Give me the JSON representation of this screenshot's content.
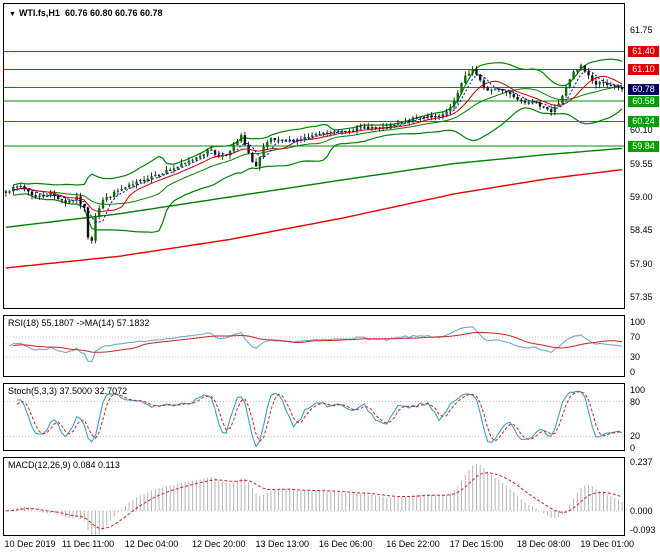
{
  "header": {
    "dropdown_icon": "▼",
    "symbol_period": "WTI.fs,H1",
    "ohlc_text": "60.76 60.80 60.76 60.78"
  },
  "colors": {
    "panel_border": "#000000",
    "grid_dotted": "#c8c8c8",
    "up_candle": "#0a6b0a",
    "down_candle": "#111111",
    "wick": "#000000",
    "bb_band": "#008000",
    "fast_ma_red": "#d00000",
    "fast_ma_blue": "#0000cc",
    "slow_ma_green": "#008000",
    "slow_ma_red": "#e80000",
    "resistance": "#ff0000",
    "support": "#009000",
    "rsi_line": "#6fa8cf",
    "rsi_signal": "#cc2222",
    "stoch_line": "#3aa0c0",
    "stoch_signal": "#cc2222",
    "macd_hist": "#b4b4b4",
    "macd_signal": "#cc2222",
    "resistance_badge_bg": "#e00000",
    "support_badge_bg": "#00a000",
    "current_badge_bg": "#000066",
    "badge_text": "#ffffff",
    "axis_text": "#000000"
  },
  "x_axis": {
    "labels": [
      {
        "text": "10 Dec 2019",
        "bar": 5
      },
      {
        "text": "11 Dec 11:00",
        "bar": 22
      },
      {
        "text": "12 Dec 04:00",
        "bar": 39
      },
      {
        "text": "12 Dec 20:00",
        "bar": 57
      },
      {
        "text": "13 Dec 13:00",
        "bar": 74
      },
      {
        "text": "16 Dec 06:00",
        "bar": 91
      },
      {
        "text": "16 Dec 22:00",
        "bar": 109
      },
      {
        "text": "17 Dec 15:00",
        "bar": 126
      },
      {
        "text": "18 Dec 08:00",
        "bar": 144
      },
      {
        "text": "19 Dec 01:00",
        "bar": 161
      }
    ]
  },
  "chart_data": [
    {
      "type": "candlestick",
      "name": "main",
      "title": "WTI.fs,H1",
      "open": 60.76,
      "high": 60.8,
      "low": 60.76,
      "close": 60.78,
      "bars_total": 166,
      "ylim": [
        57.17,
        62.18
      ],
      "y_ticks": [
        61.75,
        60.1,
        59.55,
        59.0,
        58.45,
        57.9,
        57.35
      ],
      "price_badges": [
        {
          "price": 61.4,
          "type": "resistance"
        },
        {
          "price": 61.1,
          "type": "resistance"
        },
        {
          "price": 60.78,
          "type": "current"
        },
        {
          "price": 60.58,
          "type": "support"
        },
        {
          "price": 60.24,
          "type": "support"
        },
        {
          "price": 59.84,
          "type": "support"
        }
      ],
      "level_lines": [
        {
          "price": 61.4,
          "type": "resistance"
        },
        {
          "price": 61.1,
          "type": "resistance"
        },
        {
          "price": 60.8,
          "type": "support"
        },
        {
          "price": 60.58,
          "type": "support"
        },
        {
          "price": 60.24,
          "type": "support"
        },
        {
          "price": 59.84,
          "type": "support"
        }
      ],
      "close_anchors": [
        [
          0,
          59.1
        ],
        [
          4,
          59.18
        ],
        [
          8,
          59.0
        ],
        [
          12,
          59.05
        ],
        [
          16,
          58.92
        ],
        [
          19,
          58.98
        ],
        [
          21,
          58.8
        ],
        [
          22,
          58.35
        ],
        [
          23,
          58.3
        ],
        [
          24,
          58.7
        ],
        [
          26,
          58.95
        ],
        [
          30,
          59.1
        ],
        [
          34,
          59.2
        ],
        [
          39,
          59.35
        ],
        [
          44,
          59.45
        ],
        [
          48,
          59.55
        ],
        [
          52,
          59.7
        ],
        [
          55,
          59.78
        ],
        [
          57,
          59.65
        ],
        [
          60,
          59.75
        ],
        [
          63,
          60.0
        ],
        [
          65,
          59.7
        ],
        [
          67,
          59.5
        ],
        [
          69,
          59.8
        ],
        [
          71,
          59.95
        ],
        [
          74,
          59.9
        ],
        [
          78,
          59.95
        ],
        [
          82,
          60.0
        ],
        [
          86,
          60.05
        ],
        [
          91,
          60.1
        ],
        [
          96,
          60.15
        ],
        [
          101,
          60.12
        ],
        [
          105,
          60.2
        ],
        [
          109,
          60.28
        ],
        [
          113,
          60.35
        ],
        [
          116,
          60.3
        ],
        [
          119,
          60.45
        ],
        [
          121,
          60.7
        ],
        [
          123,
          61.0
        ],
        [
          125,
          61.1
        ],
        [
          127,
          60.9
        ],
        [
          129,
          60.75
        ],
        [
          132,
          60.8
        ],
        [
          135,
          60.7
        ],
        [
          138,
          60.6
        ],
        [
          141,
          60.55
        ],
        [
          144,
          60.5
        ],
        [
          146,
          60.4
        ],
        [
          148,
          60.55
        ],
        [
          150,
          60.8
        ],
        [
          152,
          61.05
        ],
        [
          154,
          61.15
        ],
        [
          156,
          61.0
        ],
        [
          158,
          60.85
        ],
        [
          160,
          60.9
        ],
        [
          162,
          60.82
        ],
        [
          165,
          60.78
        ]
      ],
      "noise": 0.06,
      "seed": 7,
      "overlays": {
        "bollinger": {
          "period": 20,
          "dev": 2.0
        },
        "fast_ma_red": {
          "period": 10
        },
        "fast_ma_blue": {
          "period": 5,
          "dashed": true
        },
        "slow_green_anchors": [
          [
            0,
            58.5
          ],
          [
            30,
            58.72
          ],
          [
            60,
            59.0
          ],
          [
            90,
            59.28
          ],
          [
            120,
            59.55
          ],
          [
            145,
            59.7
          ],
          [
            165,
            59.8
          ]
        ],
        "slow_red_anchors": [
          [
            0,
            57.83
          ],
          [
            30,
            58.02
          ],
          [
            60,
            58.3
          ],
          [
            90,
            58.65
          ],
          [
            120,
            59.05
          ],
          [
            145,
            59.3
          ],
          [
            165,
            59.45
          ]
        ]
      }
    },
    {
      "type": "line",
      "name": "rsi",
      "label": "RSI(18) 55.1807 ->MA(14) 57.1832",
      "period": 18,
      "ma_period": 14,
      "current": 55.1807,
      "ma_current": 57.1832,
      "ylim": [
        0,
        100
      ],
      "y_ticks": [
        100,
        70,
        30,
        0
      ],
      "y_tick_labels": [
        "100",
        "70",
        "30",
        "0"
      ],
      "levels": [
        70,
        30
      ]
    },
    {
      "type": "line",
      "name": "stochastic",
      "label": "Stoch(5,3,3) 37.5000 32.7072",
      "k": 5,
      "slowing": 3,
      "d": 3,
      "current_k": 37.5,
      "current_d": 32.7072,
      "ylim": [
        0,
        100
      ],
      "y_ticks": [
        100,
        80,
        20,
        0
      ],
      "y_tick_labels": [
        "100",
        "80",
        "20",
        "0"
      ],
      "levels": [
        80,
        20
      ]
    },
    {
      "type": "histogram+line",
      "name": "macd",
      "label": "MACD(12,26,9) 0.084 0.113",
      "fast": 12,
      "slow": 26,
      "signal": 9,
      "current_macd": 0.084,
      "current_signal": 0.113,
      "ylim": [
        -0.093,
        0.237
      ],
      "y_ticks": [
        0.237,
        0,
        -0.093
      ],
      "y_tick_labels": [
        "0.237",
        "0.000",
        "-0.093"
      ],
      "levels": [
        0
      ]
    }
  ]
}
